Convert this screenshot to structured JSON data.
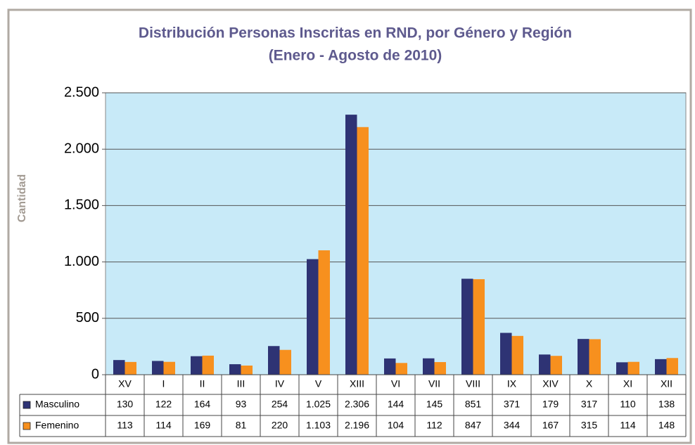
{
  "chart_data": {
    "type": "bar",
    "title": "Distribución Personas Inscritas en RND, por Género y Región",
    "subtitle": "(Enero - Agosto de 2010)",
    "y_label": "Cantidad",
    "categories": [
      "XV",
      "I",
      "II",
      "III",
      "IV",
      "V",
      "XIII",
      "VI",
      "VII",
      "VIII",
      "IX",
      "XIV",
      "X",
      "XI",
      "XII"
    ],
    "series": [
      {
        "name": "Masculino",
        "color": "#2e3374",
        "values": [
          130,
          122,
          164,
          93,
          254,
          1025,
          2306,
          144,
          145,
          851,
          371,
          179,
          317,
          110,
          138
        ],
        "value_labels": [
          "130",
          "122",
          "164",
          "93",
          "254",
          "1.025",
          "2.306",
          "144",
          "145",
          "851",
          "371",
          "179",
          "317",
          "110",
          "138"
        ]
      },
      {
        "name": "Femenino",
        "color": "#f7901e",
        "values": [
          113,
          114,
          169,
          81,
          220,
          1103,
          2196,
          104,
          112,
          847,
          344,
          167,
          315,
          114,
          148
        ],
        "value_labels": [
          "113",
          "114",
          "169",
          "81",
          "220",
          "1.103",
          "2.196",
          "104",
          "112",
          "847",
          "344",
          "167",
          "315",
          "114",
          "148"
        ]
      }
    ],
    "ylim": [
      0,
      2500
    ],
    "yticks": [
      0,
      500,
      {
        "value": 1000,
        "label": "1.000"
      },
      {
        "value": 1500,
        "label": "1.500"
      },
      {
        "value": 2000,
        "label": "2.000"
      },
      {
        "value": 2500,
        "label": "2.500"
      }
    ],
    "grid": true
  }
}
